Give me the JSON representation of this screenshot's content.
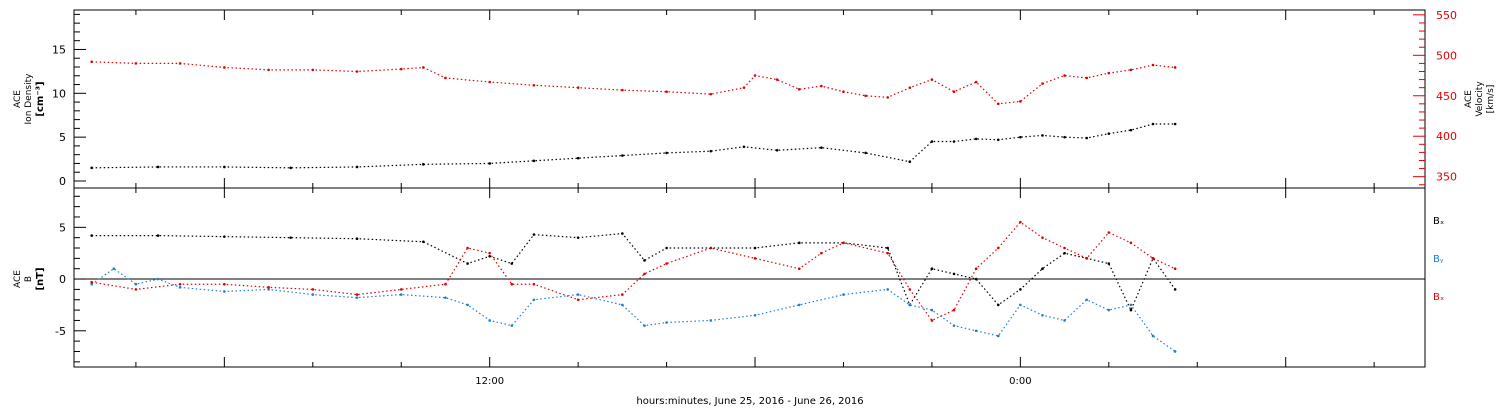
{
  "colors": {
    "axis": "#000000",
    "density": "#000000",
    "velocity": "#e00000",
    "bx": "#000000",
    "by": "#1a7fd4",
    "bz": "#e00000"
  },
  "chart_data": [
    {
      "type": "scatter",
      "panel": "plasma",
      "ylabel_left": [
        "ACE",
        "Ion Density",
        "[cm⁻³]"
      ],
      "ylabel_right": [
        "ACE",
        "Velocity",
        "[km/s]"
      ],
      "ylim_left": [
        -0.8,
        19.5
      ],
      "yticks_left": [
        "0",
        "5",
        "10",
        "15"
      ],
      "yticks_left_values": [
        0,
        5,
        10,
        15
      ],
      "ylim_right": [
        336,
        556
      ],
      "yticks_right": [
        "350",
        "400",
        "450",
        "500",
        "550"
      ],
      "yticks_right_values": [
        350,
        400,
        450,
        500,
        550
      ],
      "grid": false,
      "series": [
        {
          "name": "Ion Density",
          "axis": "left",
          "points": [
            [
              -18,
              1.5
            ],
            [
              -15,
              1.6
            ],
            [
              -12,
              1.6
            ],
            [
              -9,
              1.5
            ],
            [
              -6,
              1.6
            ],
            [
              -3,
              1.9
            ],
            [
              0,
              2.0
            ],
            [
              2,
              2.3
            ],
            [
              4,
              2.6
            ],
            [
              6,
              2.9
            ],
            [
              8,
              3.2
            ],
            [
              10,
              3.4
            ],
            [
              11.5,
              3.9
            ],
            [
              13,
              3.5
            ],
            [
              15,
              3.8
            ],
            [
              17,
              3.2
            ],
            [
              19,
              2.2
            ],
            [
              20,
              4.5
            ],
            [
              21,
              4.5
            ],
            [
              22,
              4.8
            ],
            [
              23,
              4.7
            ],
            [
              24,
              5.0
            ],
            [
              25,
              5.2
            ],
            [
              26,
              5.0
            ],
            [
              27,
              4.9
            ],
            [
              28,
              5.4
            ],
            [
              29,
              5.8
            ],
            [
              30,
              6.5
            ],
            [
              31,
              6.5
            ]
          ]
        },
        {
          "name": "Velocity",
          "axis": "right",
          "points": [
            [
              -18,
              492
            ],
            [
              -16,
              490
            ],
            [
              -14,
              490
            ],
            [
              -12,
              485
            ],
            [
              -10,
              482
            ],
            [
              -8,
              482
            ],
            [
              -6,
              480
            ],
            [
              -4,
              483
            ],
            [
              -3,
              485
            ],
            [
              -2,
              472
            ],
            [
              0,
              467
            ],
            [
              2,
              463
            ],
            [
              4,
              460
            ],
            [
              6,
              457
            ],
            [
              8,
              455
            ],
            [
              10,
              452
            ],
            [
              11.5,
              460
            ],
            [
              12,
              475
            ],
            [
              13,
              470
            ],
            [
              14,
              458
            ],
            [
              15,
              462
            ],
            [
              16,
              455
            ],
            [
              17,
              450
            ],
            [
              18,
              448
            ],
            [
              19,
              460
            ],
            [
              20,
              470
            ],
            [
              21,
              455
            ],
            [
              22,
              467
            ],
            [
              23,
              440
            ],
            [
              24,
              443
            ],
            [
              25,
              465
            ],
            [
              26,
              475
            ],
            [
              27,
              472
            ],
            [
              28,
              478
            ],
            [
              29,
              482
            ],
            [
              30,
              488
            ],
            [
              31,
              485
            ]
          ]
        }
      ]
    },
    {
      "type": "scatter",
      "panel": "magnetic",
      "ylabel_left": [
        "ACE",
        "B",
        "[nT]"
      ],
      "ylim": [
        -8.5,
        8.8
      ],
      "yticks": [
        "-5",
        "0",
        "5"
      ],
      "yticks_values": [
        -5,
        0,
        5
      ],
      "zero_line": true,
      "grid": false,
      "legend": [
        "Bₓ",
        "Bᵧ",
        "Bₓ"
      ],
      "series": [
        {
          "name": "Bₓ",
          "points": [
            [
              -18,
              4.2
            ],
            [
              -15,
              4.2
            ],
            [
              -12,
              4.1
            ],
            [
              -9,
              4.0
            ],
            [
              -6,
              3.9
            ],
            [
              -3,
              3.6
            ],
            [
              -1,
              1.5
            ],
            [
              0,
              2.2
            ],
            [
              1,
              1.5
            ],
            [
              2,
              4.3
            ],
            [
              4,
              4.0
            ],
            [
              6,
              4.4
            ],
            [
              7,
              1.8
            ],
            [
              8,
              3.0
            ],
            [
              10,
              3.0
            ],
            [
              12,
              3.0
            ],
            [
              14,
              3.5
            ],
            [
              16,
              3.5
            ],
            [
              18,
              3.0
            ],
            [
              19,
              -2.5
            ],
            [
              20,
              1.0
            ],
            [
              21,
              0.5
            ],
            [
              22,
              0.0
            ],
            [
              23,
              -2.5
            ],
            [
              24,
              -1.0
            ],
            [
              25,
              1.0
            ],
            [
              26,
              2.5
            ],
            [
              27,
              2.0
            ],
            [
              28,
              1.5
            ],
            [
              29,
              -3.0
            ],
            [
              30,
              2.0
            ],
            [
              31,
              -1.0
            ]
          ]
        },
        {
          "name": "Bᵧ",
          "points": [
            [
              -18,
              -0.5
            ],
            [
              -17,
              1.0
            ],
            [
              -16,
              -0.5
            ],
            [
              -15,
              0.0
            ],
            [
              -14,
              -0.8
            ],
            [
              -12,
              -1.2
            ],
            [
              -10,
              -1.0
            ],
            [
              -8,
              -1.5
            ],
            [
              -6,
              -1.8
            ],
            [
              -4,
              -1.5
            ],
            [
              -2,
              -1.8
            ],
            [
              -1,
              -2.5
            ],
            [
              0,
              -4.0
            ],
            [
              1,
              -4.5
            ],
            [
              2,
              -2.0
            ],
            [
              4,
              -1.5
            ],
            [
              6,
              -2.5
            ],
            [
              7,
              -4.5
            ],
            [
              8,
              -4.2
            ],
            [
              10,
              -4.0
            ],
            [
              12,
              -3.5
            ],
            [
              14,
              -2.5
            ],
            [
              16,
              -1.5
            ],
            [
              18,
              -1.0
            ],
            [
              19,
              -2.5
            ],
            [
              20,
              -3.0
            ],
            [
              21,
              -4.5
            ],
            [
              22,
              -5.0
            ],
            [
              23,
              -5.5
            ],
            [
              24,
              -2.5
            ],
            [
              25,
              -3.5
            ],
            [
              26,
              -4.0
            ],
            [
              27,
              -2.0
            ],
            [
              28,
              -3.0
            ],
            [
              29,
              -2.5
            ],
            [
              30,
              -5.5
            ],
            [
              31,
              -7.0
            ]
          ]
        },
        {
          "name": "Bₓ",
          "points": [
            [
              -18,
              -0.3
            ],
            [
              -16,
              -1.0
            ],
            [
              -14,
              -0.5
            ],
            [
              -12,
              -0.5
            ],
            [
              -10,
              -0.8
            ],
            [
              -8,
              -1.0
            ],
            [
              -6,
              -1.5
            ],
            [
              -4,
              -1.0
            ],
            [
              -2,
              -0.5
            ],
            [
              -1,
              3.0
            ],
            [
              0,
              2.5
            ],
            [
              1,
              -0.5
            ],
            [
              2,
              -0.5
            ],
            [
              4,
              -2.0
            ],
            [
              6,
              -1.5
            ],
            [
              7,
              0.5
            ],
            [
              8,
              1.5
            ],
            [
              10,
              3.0
            ],
            [
              12,
              2.0
            ],
            [
              14,
              1.0
            ],
            [
              15,
              2.5
            ],
            [
              16,
              3.5
            ],
            [
              18,
              2.5
            ],
            [
              19,
              -1.0
            ],
            [
              20,
              -4.0
            ],
            [
              21,
              -3.0
            ],
            [
              22,
              1.0
            ],
            [
              23,
              3.0
            ],
            [
              24,
              5.5
            ],
            [
              25,
              4.0
            ],
            [
              26,
              3.0
            ],
            [
              27,
              2.0
            ],
            [
              28,
              4.5
            ],
            [
              29,
              3.5
            ],
            [
              30,
              2.0
            ],
            [
              31,
              1.0
            ]
          ]
        }
      ]
    }
  ],
  "time_axis": {
    "range_hours": [
      -18.8,
      42.3
    ],
    "major_ticks": [
      {
        "hour": 0,
        "label": "12:00"
      },
      {
        "hour": 24,
        "label": "0:00"
      }
    ],
    "minor_step_hours": 4,
    "xlabel": "hours:minutes, June 25, 2016 - June 26, 2016"
  }
}
